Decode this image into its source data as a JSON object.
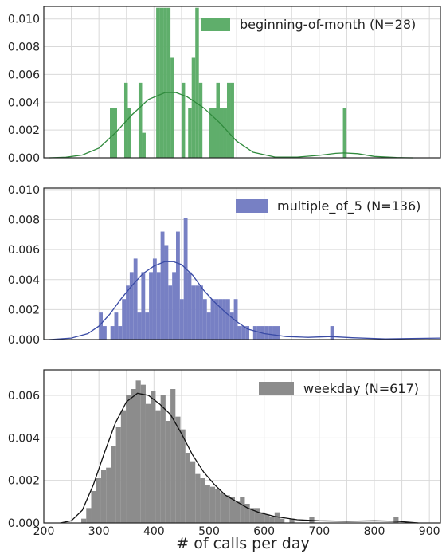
{
  "chart_data": [
    {
      "type": "bar",
      "series_name": "beginning-of-month (N=28)",
      "color": "#5fae6b",
      "kde_color": "#2f8a3c",
      "bin_width": 6.5,
      "xlim": [
        200,
        920
      ],
      "ylim": [
        0,
        0.0109
      ],
      "yticks": [
        "0.000",
        "0.002",
        "0.004",
        "0.006",
        "0.008",
        "0.010"
      ],
      "ytick_values": [
        0,
        0.002,
        0.004,
        0.006,
        0.008,
        0.01
      ],
      "bars": [
        {
          "x": 320,
          "y": 0.0036
        },
        {
          "x": 326.5,
          "y": 0.0036
        },
        {
          "x": 346,
          "y": 0.0054
        },
        {
          "x": 352.5,
          "y": 0.0036
        },
        {
          "x": 372,
          "y": 0.0054
        },
        {
          "x": 378.5,
          "y": 0.0018
        },
        {
          "x": 404,
          "y": 0.0108
        },
        {
          "x": 410.5,
          "y": 0.0108
        },
        {
          "x": 417,
          "y": 0.0108
        },
        {
          "x": 423.5,
          "y": 0.0108
        },
        {
          "x": 430,
          "y": 0.0072
        },
        {
          "x": 450,
          "y": 0.0054
        },
        {
          "x": 462,
          "y": 0.0036
        },
        {
          "x": 468.5,
          "y": 0.0072
        },
        {
          "x": 475,
          "y": 0.0108
        },
        {
          "x": 481.5,
          "y": 0.0054
        },
        {
          "x": 500,
          "y": 0.0036
        },
        {
          "x": 506.5,
          "y": 0.0036
        },
        {
          "x": 513,
          "y": 0.0054
        },
        {
          "x": 519.5,
          "y": 0.0036
        },
        {
          "x": 526,
          "y": 0.0036
        },
        {
          "x": 532.5,
          "y": 0.0054
        },
        {
          "x": 539,
          "y": 0.0054
        },
        {
          "x": 743,
          "y": 0.0036
        }
      ],
      "kde": [
        [
          210,
          0.0
        ],
        [
          240,
          4e-05
        ],
        [
          270,
          0.0002
        ],
        [
          300,
          0.0007
        ],
        [
          330,
          0.0018
        ],
        [
          360,
          0.0031
        ],
        [
          390,
          0.0042
        ],
        [
          420,
          0.0047
        ],
        [
          440,
          0.0047
        ],
        [
          460,
          0.0044
        ],
        [
          490,
          0.0036
        ],
        [
          520,
          0.0025
        ],
        [
          550,
          0.0012
        ],
        [
          580,
          0.0004
        ],
        [
          620,
          5e-05
        ],
        [
          660,
          5e-05
        ],
        [
          700,
          0.00018
        ],
        [
          730,
          0.00032
        ],
        [
          745,
          0.00035
        ],
        [
          770,
          0.0003
        ],
        [
          800,
          0.0001
        ],
        [
          840,
          2e-05
        ],
        [
          870,
          0.0
        ]
      ]
    },
    {
      "type": "bar",
      "series_name": "multiple_of_5 (N=136)",
      "color": "#7780c4",
      "kde_color": "#3a4ba5",
      "bin_width": 7,
      "xlim": [
        200,
        920
      ],
      "ylim": [
        0,
        0.0101
      ],
      "yticks": [
        "0.000",
        "0.002",
        "0.004",
        "0.006",
        "0.008",
        "0.010"
      ],
      "ytick_values": [
        0,
        0.002,
        0.004,
        0.006,
        0.008,
        0.01
      ],
      "bars": [
        {
          "x": 300,
          "y": 0.0018
        },
        {
          "x": 307,
          "y": 0.0009
        },
        {
          "x": 314,
          "y": 0.0
        },
        {
          "x": 321,
          "y": 0.0009
        },
        {
          "x": 328,
          "y": 0.0018
        },
        {
          "x": 335,
          "y": 0.0009
        },
        {
          "x": 342,
          "y": 0.0027
        },
        {
          "x": 349,
          "y": 0.0036
        },
        {
          "x": 356,
          "y": 0.0045
        },
        {
          "x": 363,
          "y": 0.0054
        },
        {
          "x": 370,
          "y": 0.0018
        },
        {
          "x": 377,
          "y": 0.0045
        },
        {
          "x": 384,
          "y": 0.0018
        },
        {
          "x": 391,
          "y": 0.0045
        },
        {
          "x": 398,
          "y": 0.0054
        },
        {
          "x": 405,
          "y": 0.0045
        },
        {
          "x": 412,
          "y": 0.0072
        },
        {
          "x": 419,
          "y": 0.0063
        },
        {
          "x": 426,
          "y": 0.0036
        },
        {
          "x": 433,
          "y": 0.0045
        },
        {
          "x": 440,
          "y": 0.0072
        },
        {
          "x": 447,
          "y": 0.0027
        },
        {
          "x": 454,
          "y": 0.0081
        },
        {
          "x": 461,
          "y": 0.0045
        },
        {
          "x": 468,
          "y": 0.0036
        },
        {
          "x": 475,
          "y": 0.0036
        },
        {
          "x": 482,
          "y": 0.0036
        },
        {
          "x": 489,
          "y": 0.0027
        },
        {
          "x": 496,
          "y": 0.0018
        },
        {
          "x": 503,
          "y": 0.0027
        },
        {
          "x": 510,
          "y": 0.0027
        },
        {
          "x": 517,
          "y": 0.0027
        },
        {
          "x": 524,
          "y": 0.0027
        },
        {
          "x": 531,
          "y": 0.0027
        },
        {
          "x": 538,
          "y": 0.0018
        },
        {
          "x": 545,
          "y": 0.0027
        },
        {
          "x": 552,
          "y": 0.0009
        },
        {
          "x": 559,
          "y": 0.0009
        },
        {
          "x": 566,
          "y": 0.0009
        },
        {
          "x": 580,
          "y": 0.0009
        },
        {
          "x": 587,
          "y": 0.0009
        },
        {
          "x": 594,
          "y": 0.0009
        },
        {
          "x": 601,
          "y": 0.0009
        },
        {
          "x": 608,
          "y": 0.0009
        },
        {
          "x": 615,
          "y": 0.0009
        },
        {
          "x": 622,
          "y": 0.0009
        },
        {
          "x": 720,
          "y": 0.0009
        }
      ],
      "kde": [
        [
          210,
          0.0
        ],
        [
          250,
          0.0001
        ],
        [
          280,
          0.0004
        ],
        [
          300,
          0.0009
        ],
        [
          320,
          0.0017
        ],
        [
          340,
          0.0027
        ],
        [
          360,
          0.0036
        ],
        [
          380,
          0.0044
        ],
        [
          400,
          0.0049
        ],
        [
          420,
          0.0052
        ],
        [
          435,
          0.0052
        ],
        [
          450,
          0.005
        ],
        [
          470,
          0.0043
        ],
        [
          490,
          0.0033
        ],
        [
          510,
          0.0025
        ],
        [
          530,
          0.0018
        ],
        [
          550,
          0.0012
        ],
        [
          570,
          0.0007
        ],
        [
          600,
          0.0004
        ],
        [
          640,
          0.0002
        ],
        [
          680,
          0.00015
        ],
        [
          720,
          0.0002
        ],
        [
          760,
          0.00012
        ],
        [
          820,
          5e-05
        ],
        [
          920,
          0.0001
        ]
      ]
    },
    {
      "type": "bar",
      "series_name": "weekday (N=617)",
      "color": "#8c8c8c",
      "kde_color": "#111111",
      "bin_width": 9,
      "xlim": [
        200,
        920
      ],
      "ylim": [
        0,
        0.0072
      ],
      "xticks": [
        "200",
        "300",
        "400",
        "500",
        "600",
        "700",
        "800",
        "900"
      ],
      "xtick_values": [
        200,
        300,
        400,
        500,
        600,
        700,
        800,
        900
      ],
      "yticks": [
        "0.000",
        "0.002",
        "0.004",
        "0.006"
      ],
      "ytick_values": [
        0,
        0.002,
        0.004,
        0.006
      ],
      "xlabel": "# of calls per day",
      "bars": [
        {
          "x": 268,
          "y": 0.0002
        },
        {
          "x": 277,
          "y": 0.0007
        },
        {
          "x": 286,
          "y": 0.0015
        },
        {
          "x": 295,
          "y": 0.0021
        },
        {
          "x": 304,
          "y": 0.0025
        },
        {
          "x": 313,
          "y": 0.0026
        },
        {
          "x": 322,
          "y": 0.0036
        },
        {
          "x": 331,
          "y": 0.0045
        },
        {
          "x": 340,
          "y": 0.0053
        },
        {
          "x": 349,
          "y": 0.006
        },
        {
          "x": 358,
          "y": 0.0063
        },
        {
          "x": 367,
          "y": 0.0067
        },
        {
          "x": 376,
          "y": 0.0065
        },
        {
          "x": 385,
          "y": 0.0056
        },
        {
          "x": 394,
          "y": 0.0062
        },
        {
          "x": 403,
          "y": 0.0053
        },
        {
          "x": 412,
          "y": 0.006
        },
        {
          "x": 421,
          "y": 0.0048
        },
        {
          "x": 430,
          "y": 0.0063
        },
        {
          "x": 439,
          "y": 0.005
        },
        {
          "x": 448,
          "y": 0.0044
        },
        {
          "x": 457,
          "y": 0.0033
        },
        {
          "x": 466,
          "y": 0.0029
        },
        {
          "x": 475,
          "y": 0.0023
        },
        {
          "x": 484,
          "y": 0.0021
        },
        {
          "x": 493,
          "y": 0.0018
        },
        {
          "x": 502,
          "y": 0.0017
        },
        {
          "x": 511,
          "y": 0.0016
        },
        {
          "x": 520,
          "y": 0.0014
        },
        {
          "x": 529,
          "y": 0.0013
        },
        {
          "x": 538,
          "y": 0.0012
        },
        {
          "x": 547,
          "y": 0.001
        },
        {
          "x": 556,
          "y": 0.0012
        },
        {
          "x": 565,
          "y": 0.0009
        },
        {
          "x": 574,
          "y": 0.0007
        },
        {
          "x": 583,
          "y": 0.0007
        },
        {
          "x": 592,
          "y": 0.0005
        },
        {
          "x": 601,
          "y": 0.0004
        },
        {
          "x": 610,
          "y": 0.0003
        },
        {
          "x": 619,
          "y": 0.0005
        },
        {
          "x": 628,
          "y": 0.0002
        },
        {
          "x": 646,
          "y": 0.0002
        },
        {
          "x": 682,
          "y": 0.0003
        },
        {
          "x": 835,
          "y": 0.0003
        }
      ],
      "kde": [
        [
          230,
          0.0
        ],
        [
          250,
          0.0001
        ],
        [
          270,
          0.0006
        ],
        [
          290,
          0.0018
        ],
        [
          310,
          0.0033
        ],
        [
          330,
          0.0047
        ],
        [
          350,
          0.0057
        ],
        [
          370,
          0.0061
        ],
        [
          390,
          0.006
        ],
        [
          410,
          0.0056
        ],
        [
          430,
          0.0051
        ],
        [
          450,
          0.0042
        ],
        [
          470,
          0.0032
        ],
        [
          490,
          0.0024
        ],
        [
          510,
          0.0018
        ],
        [
          530,
          0.0013
        ],
        [
          550,
          0.001
        ],
        [
          570,
          0.0007
        ],
        [
          590,
          0.0005
        ],
        [
          620,
          0.0003
        ],
        [
          660,
          0.00015
        ],
        [
          700,
          0.0001
        ],
        [
          750,
          8e-05
        ],
        [
          800,
          0.0001
        ],
        [
          840,
          8e-05
        ],
        [
          880,
          0.0
        ]
      ]
    }
  ]
}
